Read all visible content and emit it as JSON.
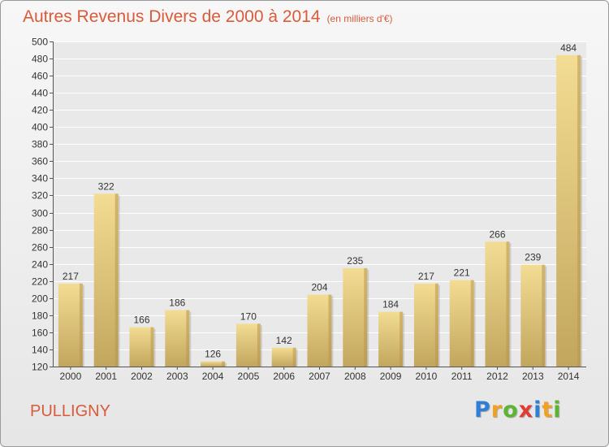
{
  "title": "Autres Revenus Divers de 2000 à 2014",
  "subtitle": "(en milliers d'€)",
  "commune": "PULLIGNY",
  "logo": {
    "text": "Proxiti",
    "letters": [
      {
        "char": "P",
        "color": "#2f7fd6"
      },
      {
        "char": "r",
        "color": "#f2a023"
      },
      {
        "char": "o",
        "color": "#5cb531"
      },
      {
        "char": "x",
        "color": "#e23b32"
      },
      {
        "char": "i",
        "color": "#2f7fd6"
      },
      {
        "char": "t",
        "color": "#f2a023"
      },
      {
        "char": "i",
        "color": "#5cb531"
      }
    ]
  },
  "colors": {
    "title": "#d95b3a",
    "bar_top": "#f3dc93",
    "bar_bottom": "#c2a65e",
    "bar_side": "#b8954d",
    "grid": "#ffffff",
    "text": "#333333"
  },
  "chart_data": {
    "type": "bar",
    "title": "Autres Revenus Divers de 2000 à 2014",
    "subtitle": "(en milliers d'€)",
    "categories": [
      "2000",
      "2001",
      "2002",
      "2003",
      "2004",
      "2005",
      "2006",
      "2007",
      "2008",
      "2009",
      "2010",
      "2011",
      "2012",
      "2013",
      "2014"
    ],
    "values": [
      217,
      322,
      166,
      186,
      126,
      170,
      142,
      204,
      235,
      184,
      217,
      221,
      266,
      239,
      484
    ],
    "ylim": [
      120,
      500
    ],
    "ytick_step": 20,
    "grid": true,
    "legend": "none"
  }
}
